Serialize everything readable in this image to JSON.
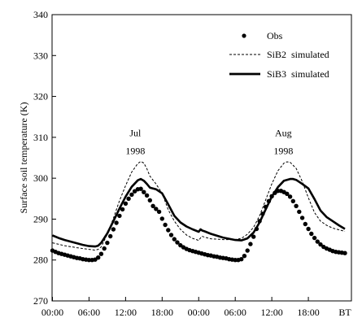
{
  "chart_data": {
    "type": "line",
    "title": "",
    "xlabel": "",
    "ylabel": "Surface soil temperature (K)",
    "ylim": [
      270,
      340
    ],
    "yticks": [
      270,
      280,
      290,
      300,
      310,
      320,
      330,
      340
    ],
    "xlim": [
      0,
      48
    ],
    "xticks": [
      {
        "x": 0,
        "label": "00:00"
      },
      {
        "x": 6,
        "label": "06:00"
      },
      {
        "x": 12,
        "label": "12:00"
      },
      {
        "x": 18,
        "label": "18:00"
      },
      {
        "x": 24,
        "label": "00:00"
      },
      {
        "x": 30,
        "label": "06:00"
      },
      {
        "x": 36,
        "label": "12:00"
      },
      {
        "x": 42,
        "label": "18:00"
      }
    ],
    "x_unit_label": "BT",
    "grid": false,
    "legend_position": "top-right",
    "annotations": [
      {
        "x": 13.6,
        "y": 310.3,
        "lines": [
          "Jul",
          "1998"
        ]
      },
      {
        "x": 37.9,
        "y": 310.3,
        "lines": [
          "Aug",
          "1998"
        ]
      }
    ],
    "series": [
      {
        "name": "Obs",
        "style": "dots",
        "x": [
          0,
          0.5,
          1,
          1.5,
          2,
          2.5,
          3,
          3.5,
          4,
          4.5,
          5,
          5.5,
          6,
          6.5,
          7,
          7.5,
          8,
          8.5,
          9,
          9.5,
          10,
          10.5,
          11,
          11.5,
          12,
          12.5,
          13,
          13.5,
          14,
          14.5,
          15,
          15.5,
          16,
          16.5,
          17,
          17.5,
          18,
          18.5,
          19,
          19.5,
          20,
          20.5,
          21,
          21.5,
          22,
          22.5,
          23,
          23.5,
          24,
          24.5,
          25,
          25.5,
          26,
          26.5,
          27,
          27.5,
          28,
          28.5,
          29,
          29.5,
          30,
          30.5,
          31,
          31.5,
          32,
          32.5,
          33,
          33.5,
          34,
          34.5,
          35,
          35.5,
          36,
          36.5,
          37,
          37.5,
          38,
          38.5,
          39,
          39.5,
          40,
          40.5,
          41,
          41.5,
          42,
          42.5,
          43,
          43.5,
          44,
          44.5,
          45,
          45.5,
          46,
          46.5,
          47,
          47.5,
          48
        ],
        "y": [
          282.3,
          282,
          281.7,
          281.5,
          281.3,
          281.1,
          280.9,
          280.7,
          280.5,
          280.4,
          280.2,
          280.1,
          280,
          280,
          280.1,
          280.6,
          281.5,
          282.8,
          284.2,
          285.8,
          287.5,
          289.1,
          290.8,
          292.4,
          293.8,
          295,
          296,
          296.8,
          297.3,
          297.4,
          296.6,
          295.8,
          294.6,
          293.2,
          292.5,
          291.8,
          290.1,
          288.6,
          287.3,
          286.1,
          285.1,
          284.3,
          283.6,
          283.1,
          282.7,
          282.4,
          282.2,
          282,
          281.8,
          281.6,
          281.4,
          281.2,
          281.1,
          280.9,
          280.8,
          280.6,
          280.5,
          280.4,
          280.2,
          280.1,
          280,
          280,
          280.2,
          281,
          282.3,
          283.9,
          285.7,
          287.6,
          289.5,
          291.3,
          293,
          294.4,
          295.6,
          296.4,
          296.9,
          296.9,
          296.6,
          296.2,
          295.5,
          294.4,
          293.2,
          291.8,
          290.3,
          288.8,
          287.6,
          286.4,
          285.4,
          284.5,
          283.8,
          283.2,
          282.8,
          282.5,
          282.2,
          282,
          281.9,
          281.8,
          281.7
        ]
      },
      {
        "name": "SiB2  simulated",
        "style": "dashed",
        "x": [
          0,
          2,
          4,
          6,
          6.5,
          7,
          7.5,
          8,
          9,
          10,
          11,
          12,
          13,
          14,
          14.5,
          15,
          15.5,
          16,
          17,
          18,
          19,
          20,
          21,
          22,
          23,
          24,
          24.5,
          25,
          26,
          28,
          30,
          31,
          32,
          33,
          34,
          35,
          36,
          37,
          38,
          38.5,
          39,
          40,
          41,
          42,
          43,
          44,
          45,
          46,
          47,
          48
        ],
        "y": [
          284.2,
          283.5,
          283,
          282.6,
          282.5,
          282.4,
          282.6,
          283.2,
          286.3,
          290.2,
          294.5,
          298.2,
          301.5,
          303.6,
          304.1,
          303.7,
          302.3,
          300.5,
          298.6,
          296.3,
          292.3,
          289.5,
          287.5,
          286.1,
          285.3,
          284.8,
          285.8,
          285.6,
          285.2,
          285,
          285,
          285.3,
          286.3,
          288,
          290.8,
          294.7,
          298.6,
          301.8,
          303.7,
          304,
          303.9,
          302.4,
          299.2,
          295.2,
          291.6,
          289.5,
          288.5,
          287.8,
          287.4,
          287
        ]
      },
      {
        "name": "SiB3  simulated",
        "style": "solid-bold",
        "x": [
          0,
          1,
          2,
          3,
          4,
          5,
          6,
          7,
          7.5,
          8,
          9,
          10,
          11,
          12,
          13,
          14,
          14.5,
          15,
          15.5,
          16,
          17,
          18,
          19,
          20,
          21,
          22,
          23,
          24,
          24.3,
          24.6,
          25,
          26,
          28,
          30,
          31,
          32,
          33,
          34,
          35,
          36,
          37,
          38,
          39,
          39.5,
          40,
          41,
          42,
          43,
          44,
          45,
          46,
          47,
          48
        ],
        "y": [
          286,
          285.4,
          284.9,
          284.5,
          284.1,
          283.7,
          283.4,
          283.3,
          283.5,
          284.2,
          286.5,
          289.5,
          292.6,
          295.5,
          297.9,
          299.5,
          299.8,
          299.4,
          298.6,
          297.7,
          297.3,
          296.3,
          293.6,
          290.8,
          289.2,
          288.2,
          287.5,
          286.9,
          287.5,
          287.2,
          287,
          286.4,
          285.5,
          284.9,
          284.8,
          285.3,
          286.7,
          289.2,
          292.4,
          295.5,
          297.8,
          299.4,
          299.8,
          299.8,
          299.6,
          298.6,
          297.5,
          294.9,
          292.1,
          290.5,
          289.5,
          288.5,
          287.6
        ]
      }
    ]
  }
}
